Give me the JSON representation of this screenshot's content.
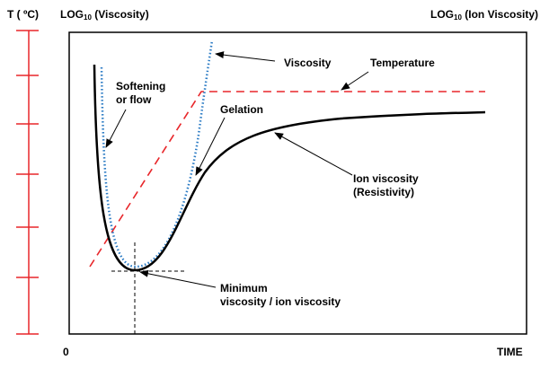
{
  "axes": {
    "left_label": "T ( ºC)",
    "y_label_main": "LOG",
    "y_label_sub": "10",
    "y_label_rest": " (Viscosity)",
    "right_label_main": "LOG",
    "right_label_sub": "10",
    "right_label_rest": " (Ion Viscosity)",
    "x_origin": "0",
    "x_label": "TIME"
  },
  "annotations": {
    "viscosity": "Viscosity",
    "temperature": "Temperature",
    "softening_1": "Softening",
    "softening_2": "or flow",
    "gelation": "Gelation",
    "ion_viscosity_1": "Ion viscosity",
    "ion_viscosity_2": "(Resistivity)",
    "minimum_1": "Minimum",
    "minimum_2": "viscosity / ion viscosity"
  },
  "colors": {
    "temperature": "#e8262a",
    "viscosity": "#2b7bc4",
    "ion_viscosity": "#000000"
  }
}
